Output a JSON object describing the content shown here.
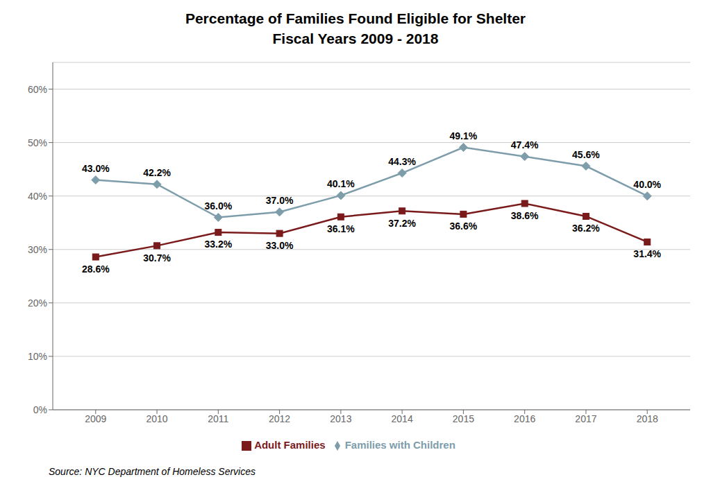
{
  "chart_data": {
    "type": "line",
    "title": "Percentage of Families Found Eligible for Shelter\nFiscal Years 2009 - 2018",
    "x": [
      2009,
      2010,
      2011,
      2012,
      2013,
      2014,
      2015,
      2016,
      2017,
      2018
    ],
    "series": [
      {
        "name": "Families with Children",
        "color": "#7d9daa",
        "marker": "diamond",
        "values": [
          43.0,
          42.2,
          36.0,
          37.0,
          40.1,
          44.3,
          49.1,
          47.4,
          45.6,
          40.0
        ],
        "value_labels": [
          "43.0%",
          "42.2%",
          "36.0%",
          "37.0%",
          "40.1%",
          "44.3%",
          "49.1%",
          "47.4%",
          "45.6%",
          "40.0%"
        ]
      },
      {
        "name": "Adult Families",
        "color": "#7a1a1a",
        "marker": "square",
        "values": [
          28.6,
          30.7,
          33.2,
          33.0,
          36.1,
          37.2,
          36.6,
          38.6,
          36.2,
          31.4
        ],
        "value_labels": [
          "28.6%",
          "30.7%",
          "33.2%",
          "33.0%",
          "36.1%",
          "37.2%",
          "36.6%",
          "38.6%",
          "36.2%",
          "31.4%"
        ]
      }
    ],
    "xlim": [
      2008.3,
      2018.7
    ],
    "xticks": [
      2009,
      2010,
      2011,
      2012,
      2013,
      2014,
      2015,
      2016,
      2017,
      2018
    ],
    "ylim": [
      0,
      65
    ],
    "yticks": [
      {
        "value": 0,
        "label": "0%"
      },
      {
        "value": 10,
        "label": "10%"
      },
      {
        "value": 20,
        "label": "20%"
      },
      {
        "value": 30,
        "label": "30%"
      },
      {
        "value": 40,
        "label": "40%"
      },
      {
        "value": 50,
        "label": "50%"
      },
      {
        "value": 60,
        "label": "60%"
      }
    ],
    "grid": true,
    "legend": "bottom",
    "data_labels": true,
    "annotations": [
      "Source: NYC Department of Homeless Services"
    ]
  }
}
